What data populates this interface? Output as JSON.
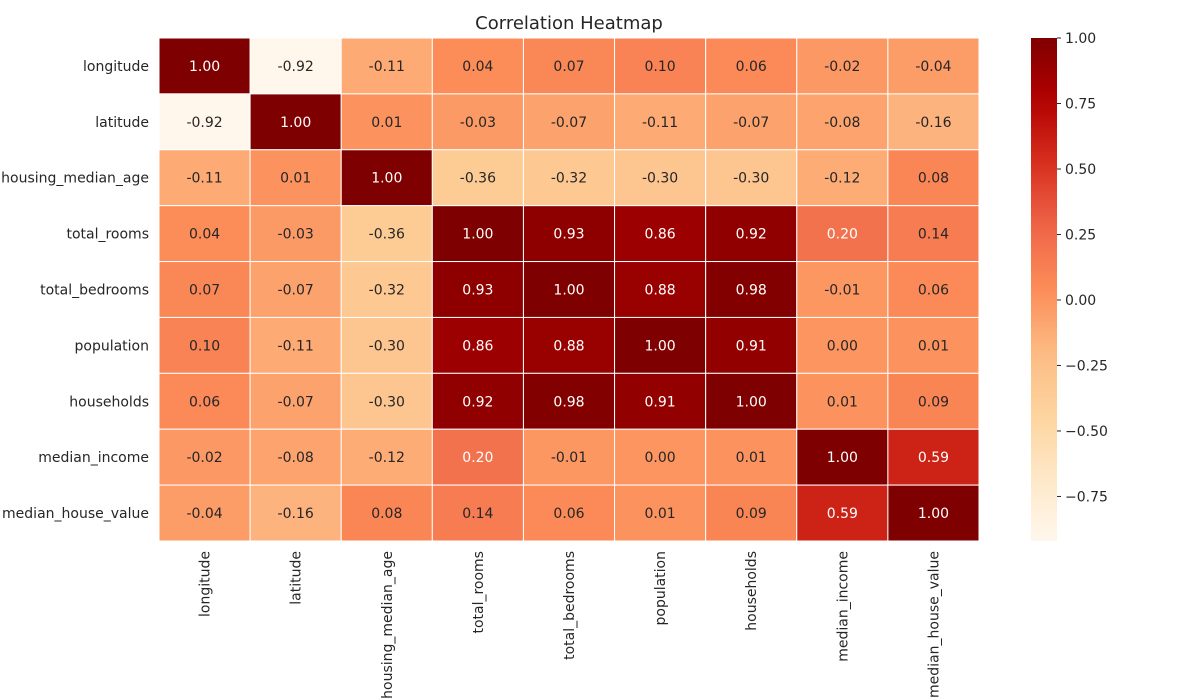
{
  "chart_data": {
    "type": "heatmap",
    "title": "Correlation Heatmap",
    "xlabel": "",
    "ylabel": "",
    "x_categories": [
      "longitude",
      "latitude",
      "housing_median_age",
      "total_rooms",
      "total_bedrooms",
      "population",
      "households",
      "median_income",
      "median_house_value"
    ],
    "y_categories": [
      "longitude",
      "latitude",
      "housing_median_age",
      "total_rooms",
      "total_bedrooms",
      "population",
      "households",
      "median_income",
      "median_house_value"
    ],
    "values": [
      [
        1.0,
        -0.92,
        -0.11,
        0.04,
        0.07,
        0.1,
        0.06,
        -0.02,
        -0.04
      ],
      [
        -0.92,
        1.0,
        0.01,
        -0.03,
        -0.07,
        -0.11,
        -0.07,
        -0.08,
        -0.16
      ],
      [
        -0.11,
        0.01,
        1.0,
        -0.36,
        -0.32,
        -0.3,
        -0.3,
        -0.12,
        0.08
      ],
      [
        0.04,
        -0.03,
        -0.36,
        1.0,
        0.93,
        0.86,
        0.92,
        0.2,
        0.14
      ],
      [
        0.07,
        -0.07,
        -0.32,
        0.93,
        1.0,
        0.88,
        0.98,
        -0.01,
        0.06
      ],
      [
        0.1,
        -0.11,
        -0.3,
        0.86,
        0.88,
        1.0,
        0.91,
        0.0,
        0.01
      ],
      [
        0.06,
        -0.07,
        -0.3,
        0.92,
        0.98,
        0.91,
        1.0,
        0.01,
        0.09
      ],
      [
        -0.02,
        -0.08,
        -0.12,
        0.2,
        -0.01,
        0.0,
        0.01,
        1.0,
        0.59
      ],
      [
        -0.04,
        -0.16,
        0.08,
        0.14,
        0.06,
        0.01,
        0.09,
        0.59,
        1.0
      ]
    ],
    "value_format": "0.00",
    "colormap": "OrRd",
    "color_range": [
      -0.92,
      1.0
    ],
    "colorbar": {
      "ticks": [
        1.0,
        0.75,
        0.5,
        0.25,
        0.0,
        -0.25,
        -0.5,
        -0.75
      ],
      "tick_labels": [
        "1.00",
        "0.75",
        "0.50",
        "0.25",
        "0.00",
        "−0.25",
        "−0.50",
        "−0.75"
      ],
      "placement": "right"
    },
    "grid": false,
    "cell_border_color": "#ffffff",
    "annotation_colors": {
      "light": "#ffffff",
      "dark": "#262626"
    }
  }
}
